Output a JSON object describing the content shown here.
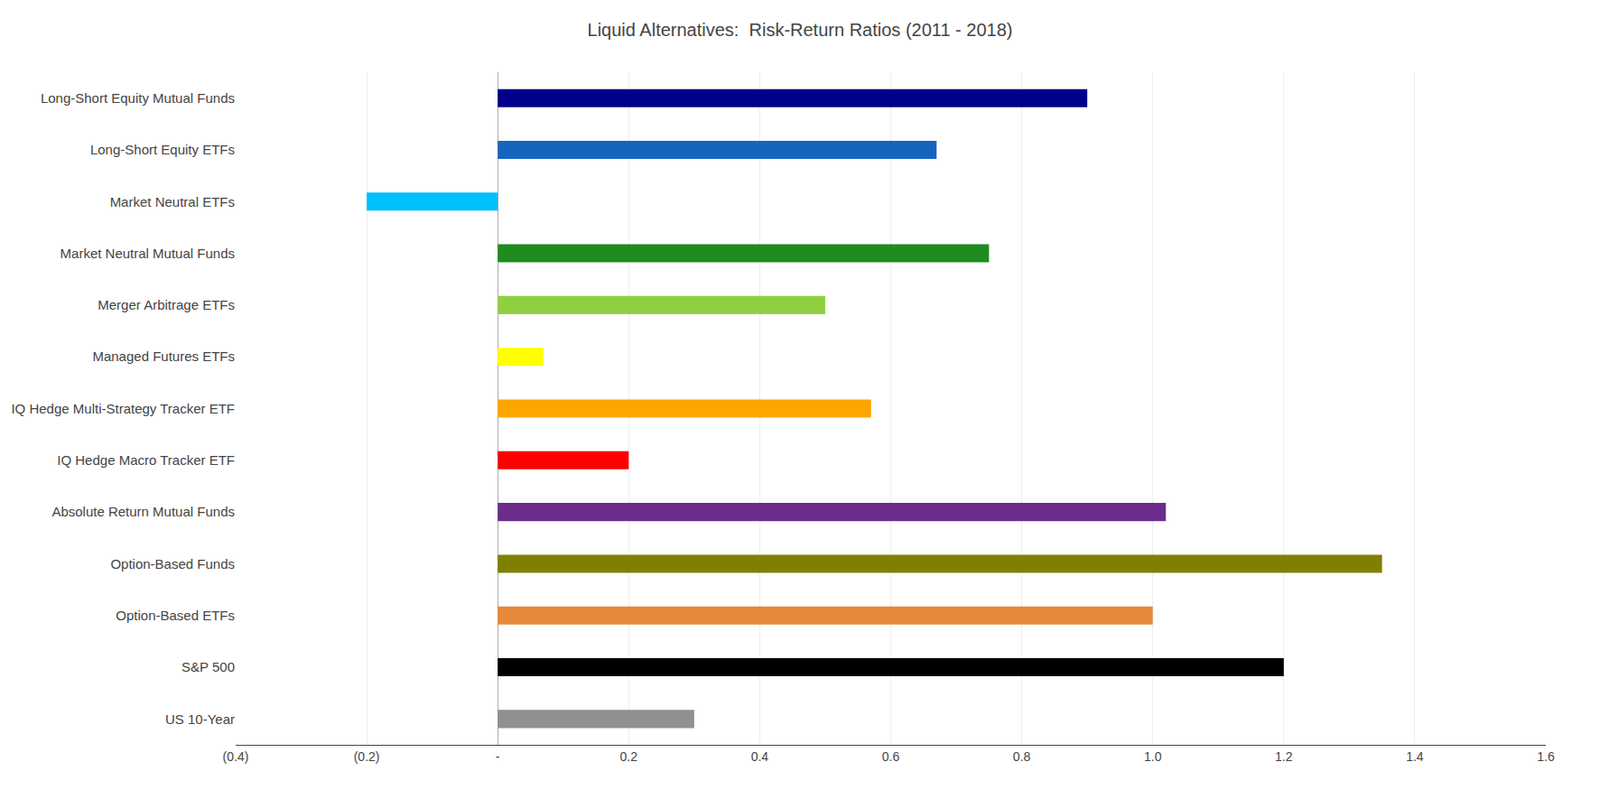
{
  "chart_data": {
    "type": "bar",
    "title": "Liquid Alternatives:  Risk-Return Ratios (2011 - 2018)",
    "orientation": "horizontal",
    "categories": [
      "Long-Short Equity Mutual Funds",
      "Long-Short Equity ETFs",
      "Market Neutral ETFs",
      "Market Neutral Mutual Funds",
      "Merger Arbitrage ETFs",
      "Managed Futures ETFs",
      "IQ Hedge Multi-Strategy Tracker ETF",
      "IQ Hedge Macro Tracker ETF",
      "Absolute Return Mutual Funds",
      "Option-Based Funds",
      "Option-Based ETFs",
      "S&P 500",
      "US 10-Year"
    ],
    "values": [
      0.9,
      0.67,
      -0.2,
      0.75,
      0.5,
      0.07,
      0.57,
      0.2,
      1.02,
      1.35,
      1.0,
      1.2,
      0.3
    ],
    "colors": [
      "#00008B",
      "#1565C0",
      "#00BFFF",
      "#1e8c1e",
      "#90D040",
      "#FFFF00",
      "#FFA500",
      "#FF0000",
      "#6B2D8B",
      "#808000",
      "#E8883A",
      "#000000",
      "#909090"
    ],
    "xlim": [
      -0.4,
      1.6
    ],
    "xticks": [
      {
        "value": -0.4,
        "label": "(0.4)"
      },
      {
        "value": -0.2,
        "label": "(0.2)"
      },
      {
        "value": 0,
        "label": "-"
      },
      0.2,
      0.4,
      0.6,
      0.8,
      {
        "value": 1.0,
        "label": "1.0"
      },
      1.2,
      1.4,
      1.6
    ],
    "grid": true
  }
}
